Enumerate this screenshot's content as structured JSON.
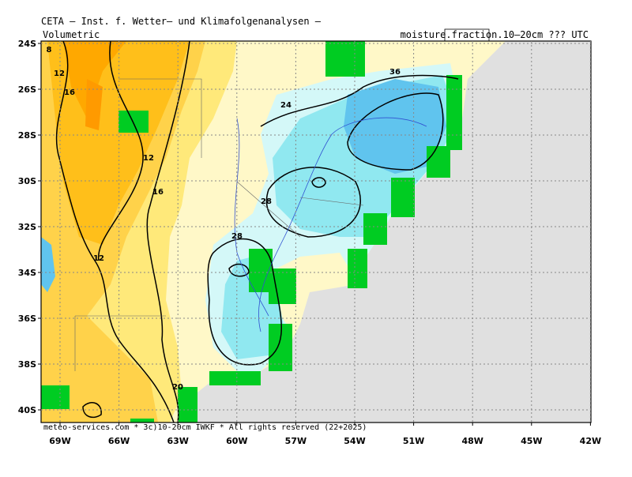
{
  "header": {
    "title": "CETA — Inst. f. Wetter— und Klimafolgenanalysen —",
    "left_label": "Volumetric",
    "right_label_prefix": "moisture.",
    "right_label_box": "fraction",
    "right_label_suffix": ".10–20cm ??? UTC"
  },
  "map": {
    "lat_ticks": [
      "24S",
      "26S",
      "28S",
      "30S",
      "32S",
      "34S",
      "36S",
      "38S",
      "40S"
    ],
    "lon_ticks": [
      "69W",
      "66W",
      "63W",
      "60W",
      "57W",
      "54W",
      "51W",
      "48W",
      "45W",
      "42W"
    ],
    "contour_labels": [
      "8",
      "12",
      "16",
      "36",
      "24",
      "12",
      "16",
      "28",
      "28",
      "12",
      "20"
    ],
    "footer": "meteo-services.com * 3c)10-20cm IWKF * All rights reserved (22+2025)"
  }
}
